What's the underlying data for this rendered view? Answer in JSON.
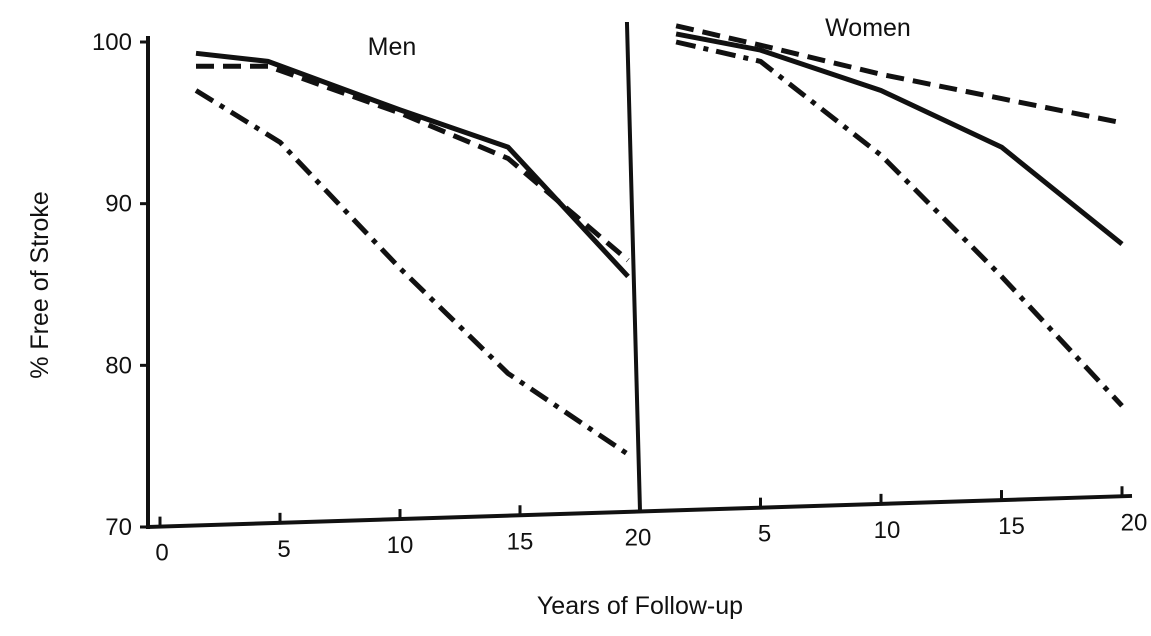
{
  "chart_data": {
    "type": "line",
    "xlabel": "Years of Follow-up",
    "ylabel": "% Free of Stroke",
    "ylim": [
      70,
      100
    ],
    "yticks": [
      "70",
      "80",
      "90",
      "100"
    ],
    "grid": false,
    "legend": "none",
    "panels": [
      {
        "title": "Men",
        "xlim": [
          0,
          20
        ],
        "xticks": [
          "0",
          "5",
          "10",
          "15",
          "20"
        ],
        "series": [
          {
            "style": "solid",
            "x": [
              1.5,
              4.5,
              10,
              14.5,
              19.5
            ],
            "y": [
              99.3,
              98.8,
              95.8,
              93.5,
              85.5
            ]
          },
          {
            "style": "dashed",
            "x": [
              1.5,
              4.5,
              10,
              14.5,
              19.5
            ],
            "y": [
              98.5,
              98.5,
              95.6,
              92.8,
              86.5
            ]
          },
          {
            "style": "dash-dot",
            "x": [
              1.5,
              5,
              10,
              14.5,
              19.5
            ],
            "y": [
              97.0,
              93.8,
              86.0,
              79.5,
              74.5
            ]
          }
        ]
      },
      {
        "title": "Women",
        "xlim": [
          0,
          20
        ],
        "xticks": [
          "",
          "5",
          "10",
          "15",
          "20"
        ],
        "series": [
          {
            "style": "solid",
            "x": [
              1.5,
              5,
              10,
              15,
              20
            ],
            "y": [
              100.5,
              99.5,
              97.0,
              93.5,
              87.5
            ]
          },
          {
            "style": "dashed",
            "x": [
              1.5,
              5,
              10,
              15,
              20
            ],
            "y": [
              101.0,
              99.8,
              98.0,
              96.5,
              95.0
            ]
          },
          {
            "style": "dash-dot",
            "x": [
              1.5,
              5,
              10,
              15,
              20
            ],
            "y": [
              100.0,
              98.8,
              93.0,
              85.5,
              77.5
            ]
          }
        ]
      }
    ]
  }
}
